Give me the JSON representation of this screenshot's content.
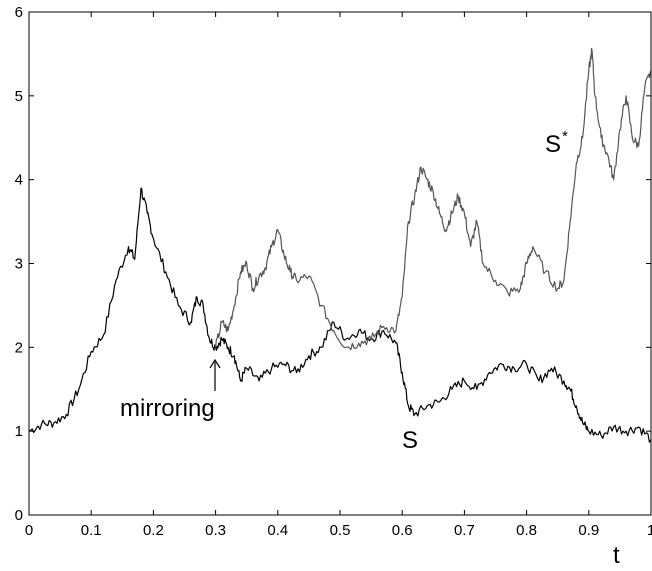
{
  "chart_data": {
    "type": "line",
    "title": "",
    "xlabel": "t",
    "ylabel": "",
    "xlim": [
      0,
      1
    ],
    "ylim": [
      0,
      6
    ],
    "grid": false,
    "x_ticks": [
      0,
      0.1,
      0.2,
      0.3,
      0.4,
      0.5,
      0.6,
      0.7,
      0.8,
      0.9,
      1
    ],
    "x_tick_labels": [
      "0",
      "0.1",
      "0.2",
      "0.3",
      "0.4",
      "0.5",
      "0.6",
      "0.7",
      "0.8",
      "0.9",
      "1"
    ],
    "y_ticks": [
      0,
      1,
      2,
      3,
      4,
      5,
      6
    ],
    "y_tick_labels": [
      "0",
      "1",
      "2",
      "3",
      "4",
      "5",
      "6"
    ],
    "series": [
      {
        "name": "S",
        "color": "#000000",
        "points": [
          [
            0,
            1.0
          ],
          [
            0.02,
            1.08
          ],
          [
            0.04,
            1.1
          ],
          [
            0.06,
            1.2
          ],
          [
            0.08,
            1.5
          ],
          [
            0.1,
            1.95
          ],
          [
            0.12,
            2.15
          ],
          [
            0.14,
            2.8
          ],
          [
            0.16,
            3.2
          ],
          [
            0.17,
            3.05
          ],
          [
            0.18,
            3.9
          ],
          [
            0.19,
            3.6
          ],
          [
            0.2,
            3.3
          ],
          [
            0.22,
            2.9
          ],
          [
            0.24,
            2.5
          ],
          [
            0.26,
            2.3
          ],
          [
            0.27,
            2.6
          ],
          [
            0.28,
            2.5
          ],
          [
            0.29,
            2.1
          ],
          [
            0.3,
            2.0
          ],
          [
            0.31,
            2.1
          ],
          [
            0.32,
            2.0
          ],
          [
            0.33,
            1.9
          ],
          [
            0.34,
            1.6
          ],
          [
            0.35,
            1.75
          ],
          [
            0.37,
            1.6
          ],
          [
            0.39,
            1.75
          ],
          [
            0.41,
            1.8
          ],
          [
            0.43,
            1.7
          ],
          [
            0.45,
            1.9
          ],
          [
            0.47,
            2.0
          ],
          [
            0.49,
            2.3
          ],
          [
            0.51,
            2.1
          ],
          [
            0.53,
            2.2
          ],
          [
            0.55,
            2.1
          ],
          [
            0.57,
            2.2
          ],
          [
            0.59,
            2.05
          ],
          [
            0.6,
            1.7
          ],
          [
            0.61,
            1.3
          ],
          [
            0.62,
            1.2
          ],
          [
            0.64,
            1.3
          ],
          [
            0.66,
            1.35
          ],
          [
            0.68,
            1.5
          ],
          [
            0.7,
            1.6
          ],
          [
            0.72,
            1.5
          ],
          [
            0.74,
            1.7
          ],
          [
            0.76,
            1.8
          ],
          [
            0.78,
            1.75
          ],
          [
            0.8,
            1.8
          ],
          [
            0.82,
            1.6
          ],
          [
            0.84,
            1.75
          ],
          [
            0.86,
            1.6
          ],
          [
            0.87,
            1.5
          ],
          [
            0.88,
            1.3
          ],
          [
            0.89,
            1.1
          ],
          [
            0.9,
            1.0
          ],
          [
            0.92,
            0.95
          ],
          [
            0.94,
            1.05
          ],
          [
            0.96,
            1.0
          ],
          [
            0.98,
            1.05
          ],
          [
            1.0,
            0.9
          ]
        ]
      },
      {
        "name": "S*",
        "color": "#555555",
        "points": [
          [
            0.3,
            2.0
          ],
          [
            0.31,
            2.3
          ],
          [
            0.32,
            2.2
          ],
          [
            0.33,
            2.5
          ],
          [
            0.34,
            2.9
          ],
          [
            0.35,
            3.0
          ],
          [
            0.36,
            2.7
          ],
          [
            0.37,
            2.85
          ],
          [
            0.38,
            2.95
          ],
          [
            0.39,
            3.2
          ],
          [
            0.4,
            3.4
          ],
          [
            0.41,
            3.1
          ],
          [
            0.42,
            2.9
          ],
          [
            0.43,
            2.8
          ],
          [
            0.45,
            2.85
          ],
          [
            0.47,
            2.5
          ],
          [
            0.49,
            2.2
          ],
          [
            0.51,
            2.0
          ],
          [
            0.53,
            2.05
          ],
          [
            0.55,
            2.1
          ],
          [
            0.57,
            2.25
          ],
          [
            0.59,
            2.2
          ],
          [
            0.6,
            2.6
          ],
          [
            0.61,
            3.5
          ],
          [
            0.62,
            3.8
          ],
          [
            0.63,
            4.15
          ],
          [
            0.64,
            4.0
          ],
          [
            0.65,
            3.85
          ],
          [
            0.66,
            3.6
          ],
          [
            0.67,
            3.4
          ],
          [
            0.68,
            3.6
          ],
          [
            0.69,
            3.8
          ],
          [
            0.7,
            3.6
          ],
          [
            0.71,
            3.2
          ],
          [
            0.72,
            3.5
          ],
          [
            0.73,
            3.0
          ],
          [
            0.75,
            2.8
          ],
          [
            0.77,
            2.65
          ],
          [
            0.79,
            2.7
          ],
          [
            0.8,
            3.0
          ],
          [
            0.81,
            3.2
          ],
          [
            0.83,
            2.9
          ],
          [
            0.85,
            2.7
          ],
          [
            0.86,
            2.8
          ],
          [
            0.87,
            3.5
          ],
          [
            0.88,
            4.2
          ],
          [
            0.89,
            4.5
          ],
          [
            0.9,
            5.3
          ],
          [
            0.905,
            5.55
          ],
          [
            0.91,
            5.0
          ],
          [
            0.92,
            4.5
          ],
          [
            0.93,
            4.3
          ],
          [
            0.94,
            4.0
          ],
          [
            0.95,
            4.6
          ],
          [
            0.96,
            5.0
          ],
          [
            0.97,
            4.5
          ],
          [
            0.98,
            4.4
          ],
          [
            0.99,
            5.1
          ],
          [
            1.0,
            5.3
          ]
        ]
      }
    ],
    "annotations": {
      "mirroring": "mirroring",
      "s_label": "S",
      "s_star_label": "S",
      "s_star_superscript": "*"
    }
  }
}
